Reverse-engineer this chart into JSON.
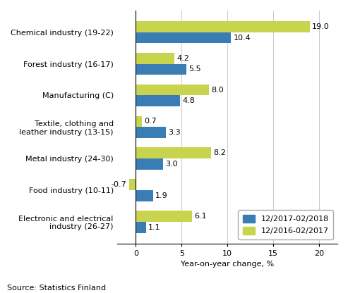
{
  "categories": [
    "Chemical industry (19-22)",
    "Forest industry (16-17)",
    "Manufacturing (C)",
    "Textile, clothing and\nleather industry (13-15)",
    "Metal industry (24-30)",
    "Food industry (10-11)",
    "Electronic and electrical\nindustry (26-27)"
  ],
  "series": [
    {
      "label": "12/2017-02/2018",
      "color": "#3a7db5",
      "values": [
        10.4,
        5.5,
        4.8,
        3.3,
        3.0,
        1.9,
        1.1
      ]
    },
    {
      "label": "12/2016-02/2017",
      "color": "#c8d44e",
      "values": [
        19.0,
        4.2,
        8.0,
        0.7,
        8.2,
        -0.7,
        6.1
      ]
    }
  ],
  "xlabel": "Year-on-year change, %",
  "xlim": [
    -2,
    22
  ],
  "xticks": [
    0,
    5,
    10,
    15,
    20
  ],
  "source": "Source: Statistics Finland",
  "bar_height": 0.35,
  "grid_color": "#cccccc",
  "background_color": "#ffffff",
  "label_fontsize": 8.0,
  "tick_fontsize": 8.0,
  "value_fontsize": 8.0,
  "legend_fontsize": 8.0,
  "source_fontsize": 8.0
}
